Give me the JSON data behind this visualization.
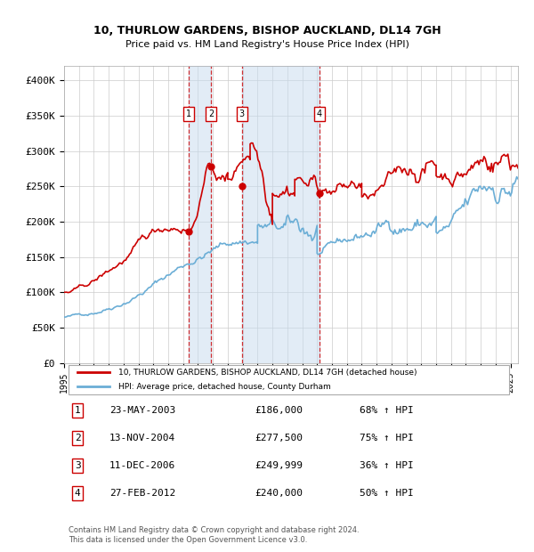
{
  "title": "10, THURLOW GARDENS, BISHOP AUCKLAND, DL14 7GH",
  "subtitle": "Price paid vs. HM Land Registry's House Price Index (HPI)",
  "ylabel_ticks": [
    "£0",
    "£50K",
    "£100K",
    "£150K",
    "£200K",
    "£250K",
    "£300K",
    "£350K",
    "£400K"
  ],
  "ytick_vals": [
    0,
    50000,
    100000,
    150000,
    200000,
    250000,
    300000,
    350000,
    400000
  ],
  "ylim": [
    0,
    420000
  ],
  "xlim_start": 1995.0,
  "xlim_end": 2025.5,
  "hpi_color": "#6baed6",
  "price_color": "#cc0000",
  "sale_marker_color": "#cc0000",
  "vline_color": "#cc0000",
  "shade_color": "#c6dbef",
  "legend_box_color": "#cc0000",
  "sales": [
    {
      "num": 1,
      "date": "23-MAY-2003",
      "year": 2003.38,
      "price": 186000,
      "pct": "68%",
      "dir": "↑"
    },
    {
      "num": 2,
      "date": "13-NOV-2004",
      "year": 2004.87,
      "price": 277500,
      "pct": "75%",
      "dir": "↑"
    },
    {
      "num": 3,
      "date": "11-DEC-2006",
      "year": 2006.94,
      "price": 249999,
      "pct": "36%",
      "dir": "↑"
    },
    {
      "num": 4,
      "date": "27-FEB-2012",
      "year": 2012.15,
      "price": 240000,
      "pct": "50%",
      "dir": "↑"
    }
  ],
  "legend1": "10, THURLOW GARDENS, BISHOP AUCKLAND, DL14 7GH (detached house)",
  "legend2": "HPI: Average price, detached house, County Durham",
  "footer": "Contains HM Land Registry data © Crown copyright and database right 2024.\nThis data is licensed under the Open Government Licence v3.0.",
  "table_rows": [
    [
      "1",
      "23-MAY-2003",
      "£186,000",
      "68% ↑ HPI"
    ],
    [
      "2",
      "13-NOV-2004",
      "£277,500",
      "75% ↑ HPI"
    ],
    [
      "3",
      "11-DEC-2006",
      "£249,999",
      "36% ↑ HPI"
    ],
    [
      "4",
      "27-FEB-2012",
      "£240,000",
      "50% ↑ HPI"
    ]
  ]
}
